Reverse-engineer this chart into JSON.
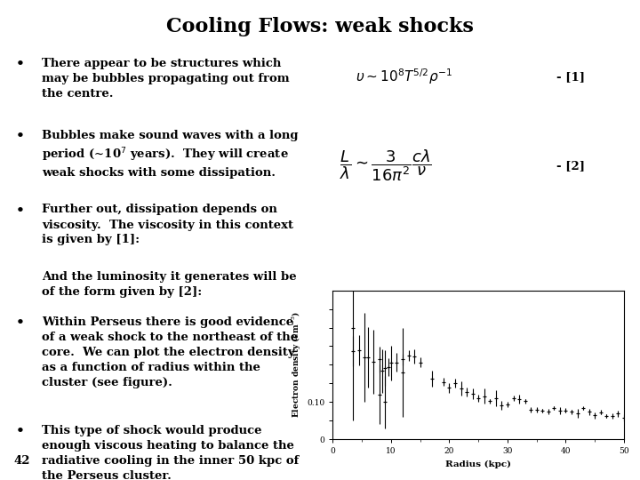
{
  "title": "Cooling Flows: weak shocks",
  "title_fontsize": 16,
  "background_color": "#ffffff",
  "bullet1": "There appear to be structures which\nmay be bubbles propagating out from\nthe centre.",
  "bullet2": "Bubbles make sound waves with a long\nperiod (~10$^7$ years).  They will create\nweak shocks with some dissipation.",
  "bullet3": "Further out, dissipation depends on\nviscosity.  The viscosity in this context\nis given by [1]:",
  "middle_text": "And the luminosity it generates will be\nof the form given by [2]:",
  "bullet4": "Within Perseus there is good evidence\nof a weak shock to the northeast of the\ncore.  We can plot the electron density\nas a function of radius within the\ncluster (see figure).",
  "bullet5": "This type of shock would produce\nenough viscous heating to balance the\nradiative cooling in the inner 50 kpc of\nthe Perseus cluster.",
  "page_number": "42",
  "text_fontsize": 9.5,
  "bullet_fontsize": 11,
  "eq1_fontsize": 11,
  "eq2_fontsize": 13
}
